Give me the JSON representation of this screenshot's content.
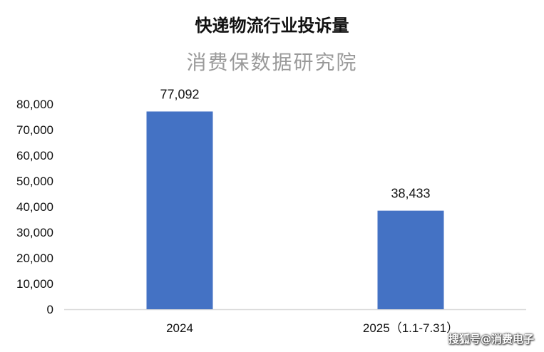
{
  "colors": {
    "bar": "#4472C4",
    "axis": "#d9d9d9",
    "subtitle": "#9a9a9a"
  },
  "watermark": "搜狐号@消费电子",
  "chart_data": {
    "type": "bar",
    "title": "快递物流行业投诉量",
    "subtitle": "消费保数据研究院",
    "categories": [
      "2024",
      "2025（1.1-7.31）"
    ],
    "values": [
      77092,
      38433
    ],
    "value_labels": [
      "77,092",
      "38,433"
    ],
    "ylim": [
      0,
      80000
    ],
    "yticks": [
      0,
      10000,
      20000,
      30000,
      40000,
      50000,
      60000,
      70000,
      80000
    ],
    "ytick_labels": [
      "0",
      "10,000",
      "20,000",
      "30,000",
      "40,000",
      "50,000",
      "60,000",
      "70,000",
      "80,000"
    ],
    "grid": false,
    "legend": "none"
  }
}
